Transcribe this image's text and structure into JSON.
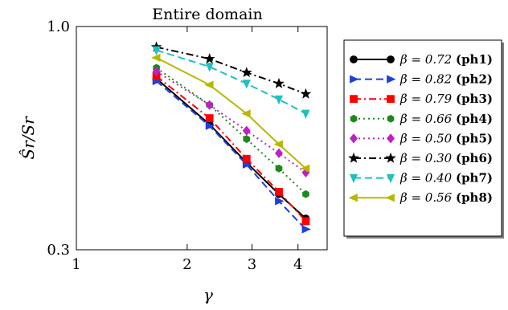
{
  "chart_data": {
    "type": "line",
    "title": "Entire domain",
    "xlabel": "γ",
    "ylabel": "Ŝr/Sr",
    "xscale": "log",
    "yscale": "log",
    "xlim": [
      1,
      4.8
    ],
    "ylim": [
      0.3,
      1.0
    ],
    "xticks": [
      1,
      2,
      3,
      4
    ],
    "xtick_labels": [
      "1",
      "2",
      "3",
      "4"
    ],
    "yticks": [
      0.3,
      1.0
    ],
    "ytick_labels": [
      "0.3",
      "1.0"
    ],
    "grid": false,
    "legend_position": "outside-right",
    "series": [
      {
        "name": "β = 0.72 (ph1)",
        "beta": "β = 0.72",
        "tag": "(ph1)",
        "color": "#000000",
        "dash": "solid",
        "marker": "circle",
        "x": [
          1.65,
          2.3,
          2.9,
          3.55,
          4.2
        ],
        "y": [
          0.755,
          0.59,
          0.48,
          0.405,
          0.355
        ]
      },
      {
        "name": "β = 0.82 (ph2)",
        "beta": "β = 0.82",
        "tag": "(ph2)",
        "color": "#1f3fe0",
        "dash": "dash",
        "marker": "triangle-right",
        "x": [
          1.65,
          2.3,
          2.9,
          3.55,
          4.2
        ],
        "y": [
          0.745,
          0.585,
          0.475,
          0.39,
          0.335
        ]
      },
      {
        "name": "β = 0.79 (ph3)",
        "beta": "β = 0.79",
        "tag": "(ph3)",
        "color": "#ff0000",
        "dash": "dashdot",
        "marker": "square",
        "x": [
          1.65,
          2.3,
          2.9,
          3.55,
          4.2
        ],
        "y": [
          0.765,
          0.61,
          0.49,
          0.41,
          0.35
        ]
      },
      {
        "name": "β = 0.66 (ph4)",
        "beta": "β = 0.66",
        "tag": "(ph4)",
        "color": "#1a8a1a",
        "dash": "dot",
        "marker": "hexagon",
        "x": [
          1.65,
          2.3,
          2.9,
          3.55,
          4.2
        ],
        "y": [
          0.8,
          0.655,
          0.545,
          0.465,
          0.405
        ]
      },
      {
        "name": "β = 0.50 (ph5)",
        "beta": "β = 0.50",
        "tag": "(ph5)",
        "color": "#c020c0",
        "dash": "dot",
        "marker": "diamond",
        "x": [
          1.65,
          2.3,
          2.9,
          3.55,
          4.2
        ],
        "y": [
          0.785,
          0.655,
          0.57,
          0.505,
          0.455
        ]
      },
      {
        "name": "β = 0.30 (ph6)",
        "beta": "β = 0.30",
        "tag": "(ph6)",
        "color": "#000000",
        "dash": "dashdot",
        "marker": "star",
        "x": [
          1.65,
          2.3,
          2.9,
          3.55,
          4.2
        ],
        "y": [
          0.895,
          0.84,
          0.78,
          0.735,
          0.695
        ]
      },
      {
        "name": "β = 0.40 (ph7)",
        "beta": "β = 0.40",
        "tag": "(ph7)",
        "color": "#20c0c0",
        "dash": "dash",
        "marker": "triangle-down",
        "x": [
          1.65,
          2.3,
          2.9,
          3.55,
          4.2
        ],
        "y": [
          0.88,
          0.805,
          0.735,
          0.675,
          0.625
        ]
      },
      {
        "name": "β = 0.56 (ph8)",
        "beta": "β = 0.56",
        "tag": "(ph8)",
        "color": "#b8b800",
        "dash": "solid",
        "marker": "triangle-left",
        "x": [
          1.65,
          2.3,
          2.9,
          3.55,
          4.2
        ],
        "y": [
          0.845,
          0.73,
          0.625,
          0.53,
          0.465
        ]
      }
    ]
  }
}
